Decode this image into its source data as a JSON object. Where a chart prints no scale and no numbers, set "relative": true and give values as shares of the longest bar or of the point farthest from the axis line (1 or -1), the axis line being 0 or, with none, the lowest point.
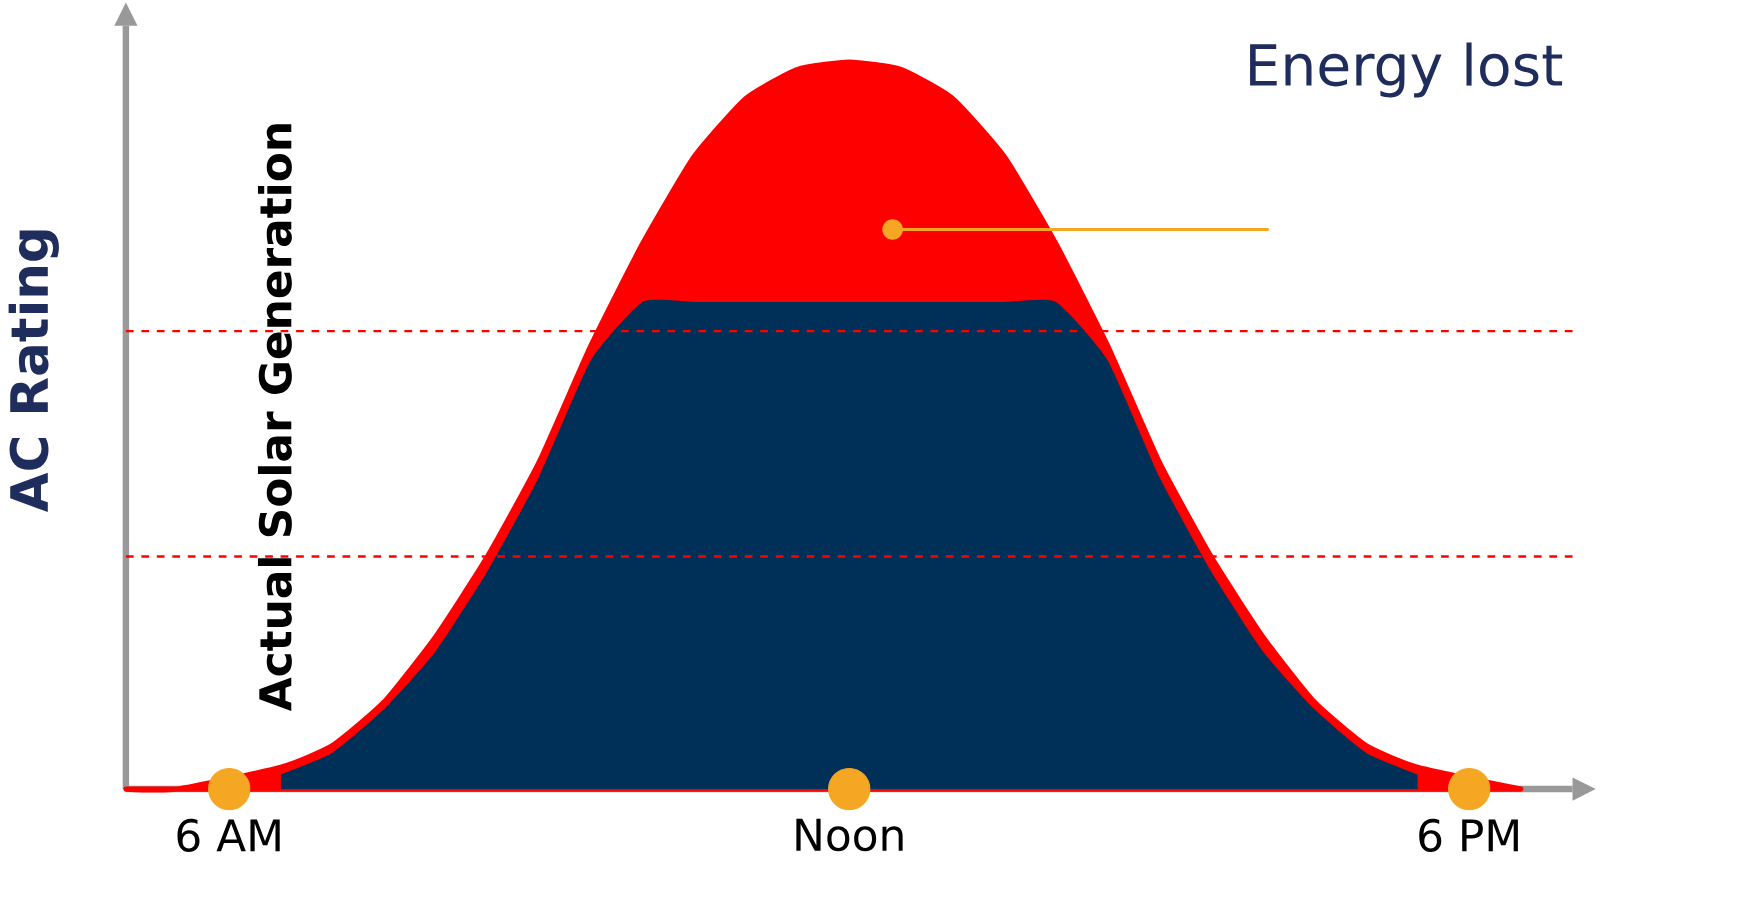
{
  "chart_data": {
    "type": "area",
    "ylabel": "AC Rating",
    "relative": true,
    "annotations": [
      "Energy lost"
    ],
    "categories": [
      null,
      null,
      "6 AM",
      null,
      null,
      null,
      null,
      null,
      null,
      null,
      null,
      null,
      null,
      null,
      "Noon",
      null,
      null,
      null,
      null,
      null,
      null,
      null,
      null,
      null,
      null,
      null,
      "6 PM",
      null
    ],
    "series": [
      {
        "color": "#ff0000",
        "values": [
          0,
          0,
          null,
          0.03,
          0.06,
          0.12,
          0.21,
          0.32,
          0.45,
          0.61,
          0.75,
          0.87,
          0.95,
          0.99,
          1,
          0.99,
          0.95,
          0.87,
          0.75,
          0.61,
          0.45,
          0.32,
          0.21,
          0.12,
          0.06,
          0.03,
          null,
          0
        ]
      },
      {
        "name": "Actual Solar Generation",
        "color": "#003057",
        "values": [
          null,
          null,
          null,
          0.02,
          0.05,
          0.11,
          0.19,
          0.3,
          0.43,
          0.59,
          0.67,
          0.67,
          0.67,
          0.67,
          0.67,
          0.67,
          0.67,
          0.67,
          0.67,
          0.59,
          0.43,
          0.3,
          0.19,
          0.11,
          0.05,
          0.02,
          null,
          null
        ]
      },
      {
        "type": "scatter",
        "color": "#f5a623",
        "marker": "circle",
        "values": [
          null,
          null,
          0,
          null,
          null,
          null,
          null,
          null,
          null,
          null,
          null,
          null,
          null,
          null,
          0,
          null,
          null,
          null,
          null,
          null,
          null,
          null,
          null,
          null,
          null,
          null,
          0,
          null
        ]
      }
    ],
    "ref_lines": [
      {
        "axis": "y",
        "value": 0.63,
        "color": "#ff0000",
        "line_style": "dashed"
      },
      {
        "axis": "y",
        "value": 0.32,
        "color": "#ff0000",
        "line_style": "dashed"
      }
    ]
  }
}
